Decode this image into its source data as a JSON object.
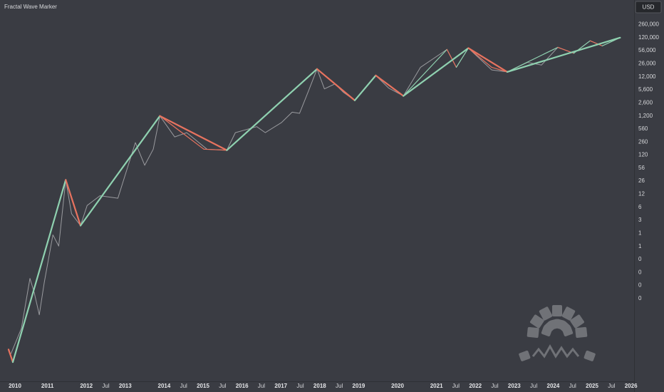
{
  "chart_data": {
    "type": "line",
    "title": "Fractal Wave Marker",
    "currency": "USD",
    "log_scale": true,
    "grid": false,
    "up_color": "#8fd1b0",
    "down_color": "#e8735f",
    "xlim": [
      2009.78,
      2026.08
    ],
    "ylim": [
      0.0002,
      1100000
    ],
    "xticks": [
      2010,
      2011,
      2012,
      {
        "value": 2012.5,
        "label": "Jul"
      },
      2013,
      2014,
      {
        "value": 2014.5,
        "label": "Jul"
      },
      2015,
      {
        "value": 2015.5,
        "label": "Jul"
      },
      2016,
      {
        "value": 2016.5,
        "label": "Jul"
      },
      2017,
      {
        "value": 2017.5,
        "label": "Jul"
      },
      2018,
      {
        "value": 2018.5,
        "label": "Jul"
      },
      2019,
      2020,
      2021,
      {
        "value": 2021.5,
        "label": "Jul"
      },
      2022,
      {
        "value": 2022.5,
        "label": "Jul"
      },
      2023,
      {
        "value": 2023.5,
        "label": "Jul"
      },
      2024,
      {
        "value": 2024.5,
        "label": "Jul"
      },
      2025,
      {
        "value": 2025.5,
        "label": "Jul"
      },
      2026
    ],
    "yticks": [
      {
        "value": 260000,
        "label": "260,000"
      },
      {
        "value": 120000,
        "label": "120,000"
      },
      {
        "value": 56000,
        "label": "56,000"
      },
      {
        "value": 26000,
        "label": "26,000"
      },
      {
        "value": 12000,
        "label": "12,000"
      },
      {
        "value": 5600,
        "label": "5,600"
      },
      {
        "value": 2600,
        "label": "2,600"
      },
      {
        "value": 1200,
        "label": "1,200"
      },
      560,
      260,
      120,
      56,
      26,
      12,
      {
        "value": 5.6,
        "label": "6"
      },
      {
        "value": 2.6,
        "label": "3"
      },
      {
        "value": 1.2,
        "label": "1"
      },
      {
        "value": 0.56,
        "label": "1"
      },
      {
        "value": 0.26,
        "label": "0"
      },
      {
        "value": 0.12,
        "label": "0"
      },
      {
        "value": 0.056,
        "label": "0"
      },
      {
        "value": 0.026,
        "label": "0"
      }
    ],
    "series": [
      {
        "style": "price",
        "color": "#9a9b9f",
        "x": [
          2010.06,
          2010.33,
          2010.55,
          2010.66,
          2010.79,
          2010.92,
          2011.14,
          2011.29,
          2011.47,
          2011.62,
          2011.85,
          2012.02,
          2012.35,
          2012.81,
          2013.26,
          2013.5,
          2013.72,
          2013.89,
          2014.27,
          2014.58,
          2015.1,
          2015.61,
          2015.83,
          2016.38,
          2016.6,
          2017.02,
          2017.29,
          2017.48,
          2017.71,
          2017.93,
          2018.12,
          2018.39,
          2018.61,
          2018.9,
          2019.44,
          2019.77,
          2020.15,
          2020.59,
          2021.27,
          2021.51,
          2021.82,
          2022.42,
          2022.82,
          2023.34,
          2023.7,
          2024.12,
          2024.53,
          2024.95,
          2025.26,
          2025.72
        ],
        "values": [
          0.001,
          0.0045,
          0.085,
          0.037,
          0.01,
          0.069,
          1.1,
          0.57,
          28,
          3.8,
          1.9,
          6.2,
          11,
          9.5,
          250,
          66,
          170,
          1200,
          350,
          450,
          170,
          160,
          450,
          640,
          450,
          820,
          1500,
          1400,
          5200,
          19000,
          5900,
          7900,
          4800,
          3000,
          13000,
          6200,
          3900,
          21000,
          60000,
          21000,
          65000,
          18000,
          16000,
          28000,
          24000,
          68000,
          48000,
          100000,
          74000,
          120000
        ]
      },
      {
        "style": "secondary",
        "x": [
          2010.11,
          2011.47,
          2011.85,
          2013.89,
          2015.02,
          2015.61,
          2017.93,
          2018.9,
          2019.44,
          2020.15,
          2021.27,
          2021.51,
          2021.82,
          2022.42,
          2022.82,
          2024.12,
          2024.53,
          2024.95,
          2025.26,
          2025.72
        ],
        "values": [
          0.00062,
          28,
          1.9,
          1200,
          170,
          160,
          19000,
          3000,
          13000,
          3900,
          60000,
          21000,
          65000,
          21000,
          16000,
          68000,
          48000,
          100000,
          74000,
          120000
        ]
      },
      {
        "style": "primary",
        "x": [
          2010.0,
          2010.11,
          2011.47,
          2011.85,
          2013.89,
          2015.61,
          2017.93,
          2018.9,
          2019.44,
          2020.15,
          2021.82,
          2022.82,
          2025.72
        ],
        "values": [
          0.0013,
          0.00062,
          28,
          1.9,
          1200,
          160,
          19000,
          3000,
          13000,
          3900,
          65000,
          16000,
          120000
        ]
      }
    ]
  }
}
